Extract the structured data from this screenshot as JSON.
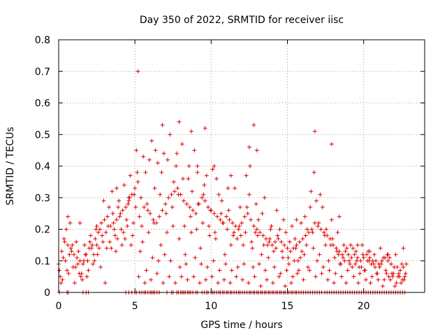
{
  "chart_data": {
    "type": "scatter",
    "title": "Day 350 of 2022, SRMTID for receiver iisc",
    "xlabel": "GPS time / hours",
    "ylabel": "SRMTID / TECUs",
    "xlim": [
      0,
      24
    ],
    "ylim": [
      0,
      0.8
    ],
    "x_ticks": [
      0,
      5,
      10,
      15,
      20
    ],
    "x_tick_labels": [
      "0",
      "5",
      "10",
      "15",
      "20"
    ],
    "y_ticks": [
      0,
      0.1,
      0.2,
      0.3,
      0.4,
      0.5,
      0.6,
      0.7,
      0.8
    ],
    "y_tick_labels": [
      "0",
      "0.1",
      "0.2",
      "0.3",
      "0.4",
      "0.5",
      "0.6",
      "0.7",
      "0.8"
    ],
    "grid": true,
    "marker": "plus",
    "color": "#e00000",
    "series": [
      {
        "name": "SRMTID",
        "x": [
          0.0,
          0.2,
          0.4,
          0.6,
          0.8,
          1.0,
          1.2,
          1.4,
          1.6,
          1.8,
          2.0,
          2.2,
          2.4,
          2.6,
          2.8,
          3.0,
          3.2,
          3.4,
          3.6,
          3.8,
          4.0,
          4.2,
          4.4,
          4.6,
          4.8,
          5.0,
          5.2,
          5.4,
          5.6,
          5.8,
          6.0,
          6.2,
          6.4,
          6.6,
          6.8,
          7.0,
          7.2,
          7.4,
          7.6,
          7.8,
          8.0,
          8.2,
          8.4,
          8.6,
          8.8,
          9.0,
          9.2,
          9.4,
          9.6,
          9.8,
          10.0,
          10.2,
          10.4,
          10.6,
          10.8,
          11.0,
          11.2,
          11.4,
          11.6,
          11.8,
          12.0,
          12.2,
          12.4,
          12.6,
          12.8,
          13.0,
          13.2,
          13.4,
          13.6,
          13.8,
          14.0,
          14.2,
          14.4,
          14.6,
          14.8,
          15.0,
          15.2,
          15.4,
          15.6,
          15.8,
          16.0,
          16.2,
          16.4,
          16.6,
          16.8,
          17.0,
          17.2,
          17.4,
          17.6,
          17.8,
          18.0,
          18.2,
          18.4,
          18.6,
          18.8,
          19.0,
          19.2,
          19.4,
          19.6,
          19.8,
          20.0,
          20.2,
          20.4,
          20.6,
          20.8,
          21.0,
          21.2,
          21.4,
          21.6,
          21.8,
          22.0,
          22.2,
          22.4,
          22.6,
          22.8,
          0.1,
          0.3,
          0.5,
          0.7,
          0.9,
          1.1,
          1.3,
          1.5,
          1.7,
          1.9,
          2.1,
          2.3,
          2.5,
          2.7,
          2.9,
          3.1,
          3.3,
          3.5,
          3.7,
          3.9,
          4.1,
          4.3,
          4.5,
          4.7,
          4.9,
          5.1,
          5.3,
          5.5,
          5.7,
          5.9,
          6.1,
          6.3,
          6.5,
          6.7,
          6.9,
          7.1,
          7.3,
          7.5,
          7.7,
          7.9,
          8.1,
          8.3,
          8.5,
          8.7,
          8.9,
          9.1,
          9.3,
          9.5,
          9.7,
          9.9,
          10.1,
          10.3,
          10.5,
          10.7,
          10.9,
          11.1,
          11.3,
          11.5,
          11.7,
          11.9,
          12.1,
          12.3,
          12.5,
          12.7,
          12.9,
          13.1,
          13.3,
          13.5,
          13.7,
          13.9,
          14.1,
          14.3,
          14.5,
          14.7,
          14.9,
          15.1,
          15.3,
          15.5,
          15.7,
          15.9,
          16.1,
          16.3,
          16.5,
          16.7,
          16.9,
          17.1,
          17.3,
          17.5,
          17.7,
          17.9,
          18.1,
          18.3,
          18.5,
          18.7,
          18.9,
          19.1,
          19.3,
          19.5,
          19.7,
          19.9,
          20.1,
          20.3,
          20.5,
          20.7,
          20.9,
          21.1,
          21.3,
          21.5,
          21.7,
          21.9,
          22.1,
          22.3,
          22.5,
          22.7,
          0.15,
          0.35,
          0.55,
          0.75,
          0.95,
          1.15,
          1.35,
          1.55,
          1.75,
          1.95,
          2.15,
          2.35,
          2.55,
          2.75,
          2.95,
          3.15,
          3.35,
          3.55,
          3.75,
          3.95,
          4.15,
          4.35,
          4.55,
          4.75,
          4.95,
          5.15,
          5.35,
          5.55,
          5.75,
          5.95,
          6.15,
          6.35,
          6.55,
          6.75,
          6.95,
          7.15,
          7.35,
          7.55,
          7.75,
          7.95,
          8.15,
          8.35,
          8.55,
          8.75,
          8.95,
          9.15,
          9.35,
          9.55,
          9.75,
          9.95,
          10.15,
          10.35,
          10.55,
          10.75,
          10.95,
          11.15,
          11.35,
          11.55,
          11.75,
          11.95,
          12.15,
          12.35,
          12.55,
          12.75,
          12.95,
          13.15,
          13.35,
          13.55,
          13.75,
          13.95,
          14.15,
          14.35,
          14.55,
          14.75,
          14.95,
          15.15,
          15.35,
          15.55,
          15.75,
          15.95,
          16.15,
          16.35,
          16.55,
          16.75,
          16.95,
          17.15,
          17.35,
          17.55,
          17.75,
          17.95,
          18.15,
          18.35,
          18.55,
          18.75,
          18.95,
          19.15,
          19.35,
          19.55,
          19.75,
          19.95,
          20.15,
          20.35,
          20.55,
          20.75,
          20.95,
          21.15,
          21.35,
          21.55,
          21.75,
          21.95,
          22.15,
          22.35,
          22.55,
          22.75,
          0.05,
          0.25,
          0.45,
          0.65,
          0.85,
          1.05,
          1.25,
          1.45,
          1.65,
          1.85,
          2.05,
          2.25,
          2.45,
          2.65,
          2.85,
          3.05,
          3.25,
          3.45,
          3.65,
          3.85,
          4.05,
          4.25,
          4.45,
          4.65,
          4.85,
          5.05,
          5.25,
          5.45,
          5.65,
          5.85,
          6.05,
          6.25,
          6.45,
          6.65,
          6.85,
          7.05,
          7.25,
          7.45,
          7.65,
          7.85,
          8.05,
          8.25,
          8.45,
          8.65,
          8.85,
          9.05,
          9.25,
          9.45,
          9.65,
          9.85,
          10.05,
          10.25,
          10.45,
          10.65,
          10.85,
          11.05,
          11.25,
          11.45,
          11.65,
          11.85,
          12.05,
          12.25,
          12.45,
          12.65,
          12.85,
          13.05,
          13.25,
          13.45,
          13.65,
          13.85,
          14.05,
          14.25,
          14.45,
          14.65,
          14.85,
          15.05,
          15.25,
          15.45,
          15.65,
          15.85,
          16.05,
          16.25,
          16.45,
          16.65,
          16.85,
          17.05,
          17.25,
          17.45,
          17.65,
          17.85,
          18.05,
          18.25,
          18.45,
          18.65,
          18.85,
          19.05,
          19.25,
          19.45,
          19.65,
          19.85,
          20.05,
          20.25,
          20.45,
          20.65,
          20.85,
          21.05,
          21.25,
          21.45,
          21.65,
          21.85,
          22.05,
          22.25,
          22.45,
          22.65,
          5.2,
          6.8,
          7.9,
          8.7,
          9.6,
          12.8,
          12.5,
          13.0,
          16.8,
          17.9,
          9.1,
          10.2,
          11.3,
          0.6,
          1.4,
          2.5,
          3.8,
          4.6,
          15.6,
          18.4,
          19.6,
          20.4,
          21.6,
          22.6
        ],
        "y": [
          0.09,
          0.13,
          0.16,
          0.15,
          0.14,
          0.12,
          0.11,
          0.1,
          0.09,
          0.12,
          0.14,
          0.15,
          0.17,
          0.19,
          0.22,
          0.23,
          0.24,
          0.21,
          0.22,
          0.23,
          0.24,
          0.26,
          0.27,
          0.29,
          0.31,
          0.33,
          0.35,
          0.3,
          0.27,
          0.28,
          0.25,
          0.23,
          0.22,
          0.24,
          0.26,
          0.28,
          0.3,
          0.31,
          0.32,
          0.33,
          0.31,
          0.29,
          0.28,
          0.27,
          0.26,
          0.25,
          0.28,
          0.3,
          0.29,
          0.27,
          0.26,
          0.25,
          0.24,
          0.23,
          0.22,
          0.24,
          0.23,
          0.22,
          0.21,
          0.2,
          0.22,
          0.24,
          0.25,
          0.23,
          0.21,
          0.2,
          0.19,
          0.18,
          0.17,
          0.16,
          0.15,
          0.16,
          0.17,
          0.16,
          0.15,
          0.14,
          0.13,
          0.14,
          0.15,
          0.16,
          0.17,
          0.18,
          0.19,
          0.2,
          0.22,
          0.21,
          0.2,
          0.19,
          0.18,
          0.17,
          0.15,
          0.14,
          0.13,
          0.12,
          0.13,
          0.12,
          0.11,
          0.12,
          0.11,
          0.1,
          0.11,
          0.12,
          0.11,
          0.1,
          0.1,
          0.09,
          0.1,
          0.11,
          0.1,
          0.09,
          0.08,
          0.08,
          0.07,
          0.08,
          0.09,
          0.05,
          0.11,
          0.2,
          0.12,
          0.15,
          0.08,
          0.13,
          0.06,
          0.15,
          0.1,
          0.18,
          0.12,
          0.15,
          0.2,
          0.16,
          0.19,
          0.27,
          0.32,
          0.18,
          0.27,
          0.2,
          0.34,
          0.21,
          0.37,
          0.22,
          0.45,
          0.24,
          0.16,
          0.38,
          0.19,
          0.48,
          0.33,
          0.41,
          0.15,
          0.44,
          0.19,
          0.5,
          0.21,
          0.4,
          0.17,
          0.47,
          0.12,
          0.36,
          0.19,
          0.45,
          0.38,
          0.14,
          0.31,
          0.37,
          0.18,
          0.39,
          0.17,
          0.31,
          0.29,
          0.12,
          0.33,
          0.15,
          0.19,
          0.17,
          0.27,
          0.15,
          0.37,
          0.31,
          0.14,
          0.19,
          0.23,
          0.12,
          0.3,
          0.15,
          0.2,
          0.13,
          0.26,
          0.2,
          0.11,
          0.19,
          0.09,
          0.21,
          0.17,
          0.1,
          0.22,
          0.12,
          0.2,
          0.27,
          0.14,
          0.29,
          0.12,
          0.27,
          0.15,
          0.1,
          0.23,
          0.11,
          0.19,
          0.09,
          0.15,
          0.14,
          0.09,
          0.14,
          0.13,
          0.08,
          0.15,
          0.07,
          0.13,
          0.09,
          0.12,
          0.06,
          0.14,
          0.11,
          0.06,
          0.11,
          0.05,
          0.12,
          0.06,
          0.09,
          0.05,
          0.03,
          0.17,
          0.07,
          0.22,
          0.08,
          0.16,
          0.06,
          0.04,
          0.12,
          0.07,
          0.14,
          0.1,
          0.12,
          0.08,
          0.29,
          0.14,
          0.16,
          0.25,
          0.13,
          0.29,
          0.15,
          0.17,
          0.28,
          0.15,
          0.31,
          0.38,
          0.13,
          0.43,
          0.07,
          0.42,
          0.11,
          0.45,
          0.1,
          0.38,
          0.12,
          0.42,
          0.1,
          0.35,
          0.44,
          0.08,
          0.36,
          0.09,
          0.4,
          0.32,
          0.11,
          0.28,
          0.09,
          0.34,
          0.08,
          0.26,
          0.1,
          0.36,
          0.07,
          0.22,
          0.09,
          0.26,
          0.07,
          0.33,
          0.08,
          0.18,
          0.09,
          0.27,
          0.4,
          0.08,
          0.28,
          0.09,
          0.25,
          0.07,
          0.11,
          0.21,
          0.08,
          0.18,
          0.06,
          0.23,
          0.07,
          0.16,
          0.05,
          0.14,
          0.07,
          0.13,
          0.24,
          0.08,
          0.32,
          0.38,
          0.1,
          0.31,
          0.08,
          0.2,
          0.07,
          0.17,
          0.06,
          0.12,
          0.05,
          0.1,
          0.07,
          0.15,
          0.05,
          0.1,
          0.06,
          0.12,
          0.04,
          0.1,
          0.05,
          0.08,
          0.04,
          0.09,
          0.04,
          0.12,
          0.04,
          0.06,
          0.03,
          0.05,
          0.04,
          0.06,
          0.07,
          0.04,
          0.1,
          0.06,
          0.13,
          0.03,
          0.09,
          0.05,
          0.1,
          0.05,
          0.16,
          0.09,
          0.2,
          0.14,
          0.18,
          0.03,
          0.21,
          0.14,
          0.2,
          0.17,
          0.25,
          0.19,
          0.23,
          0.3,
          0.18,
          0.27,
          0.05,
          0.21,
          0.03,
          0.26,
          0.04,
          0.22,
          0.06,
          0.31,
          0.03,
          0.25,
          0.05,
          0.27,
          0.03,
          0.31,
          0.05,
          0.21,
          0.04,
          0.24,
          0.05,
          0.2,
          0.03,
          0.22,
          0.04,
          0.21,
          0.05,
          0.19,
          0.03,
          0.25,
          0.04,
          0.2,
          0.03,
          0.18,
          0.05,
          0.21,
          0.04,
          0.19,
          0.03,
          0.16,
          0.05,
          0.18,
          0.02,
          0.15,
          0.04,
          0.17,
          0.03,
          0.14,
          0.05,
          0.13,
          0.02,
          0.11,
          0.03,
          0.1,
          0.06,
          0.11,
          0.04,
          0.15,
          0.07,
          0.19,
          0.05,
          0.22,
          0.06,
          0.18,
          0.04,
          0.15,
          0.03,
          0.13,
          0.09,
          0.11,
          0.03,
          0.1,
          0.08,
          0.09,
          0.03,
          0.08,
          0.07,
          0.1,
          0.03,
          0.09,
          0.06,
          0.08,
          0.02,
          0.07,
          0.05,
          0.06,
          0.02,
          0.05,
          0.03,
          0.04,
          0.7,
          0.53,
          0.54,
          0.51,
          0.52,
          0.53,
          0.46,
          0.45,
          0.51,
          0.47,
          0.4,
          0.4,
          0.37,
          0.24,
          0.22,
          0.21,
          0.33,
          0.3,
          0.23,
          0.24,
          0.15,
          0.13,
          0.12,
          0.14
        ],
        "y_zero_marker_x": [
          0.05,
          0.55,
          0.62,
          1.6,
          1.8,
          1.95,
          4.4,
          4.6,
          4.8,
          5.0,
          5.1,
          5.3,
          5.45,
          5.6,
          5.7,
          5.85,
          6.0,
          6.1,
          6.2,
          6.3,
          6.45,
          6.6,
          7.1,
          7.4,
          7.5,
          7.75,
          7.85,
          8.0,
          8.1,
          8.2,
          8.3,
          8.45,
          8.55,
          8.65,
          8.8,
          9.0,
          9.1,
          9.4,
          9.55,
          9.7,
          9.8,
          10.0,
          10.1,
          10.2,
          10.35,
          10.5,
          10.6,
          10.75,
          10.85,
          11.0,
          11.1,
          11.25,
          11.35,
          11.5,
          11.65,
          11.8,
          11.9,
          12.05,
          12.2,
          12.35,
          12.5,
          12.6,
          12.75,
          12.85,
          13.0,
          13.1,
          13.25,
          13.35,
          13.5,
          13.6,
          13.75,
          13.85,
          14.0,
          14.1,
          14.25,
          14.35,
          14.5,
          14.6,
          14.75,
          14.85,
          15.0,
          15.1,
          15.25,
          15.35,
          15.5,
          15.6,
          15.75,
          15.9,
          16.05,
          16.2,
          16.35,
          16.5,
          16.65,
          16.8,
          16.95,
          17.1,
          17.25,
          17.45,
          17.6,
          17.75,
          17.9,
          18.05,
          18.2,
          18.35,
          18.5,
          18.65,
          18.8,
          18.95,
          19.1,
          19.25,
          19.4,
          19.55,
          19.7,
          19.85,
          20.0,
          20.15,
          20.3,
          20.45,
          20.6,
          20.75,
          20.9,
          21.05,
          21.2,
          21.35,
          21.5,
          21.65,
          21.8,
          21.95,
          22.1,
          22.25,
          22.4,
          22.55,
          22.7
        ]
      }
    ]
  }
}
